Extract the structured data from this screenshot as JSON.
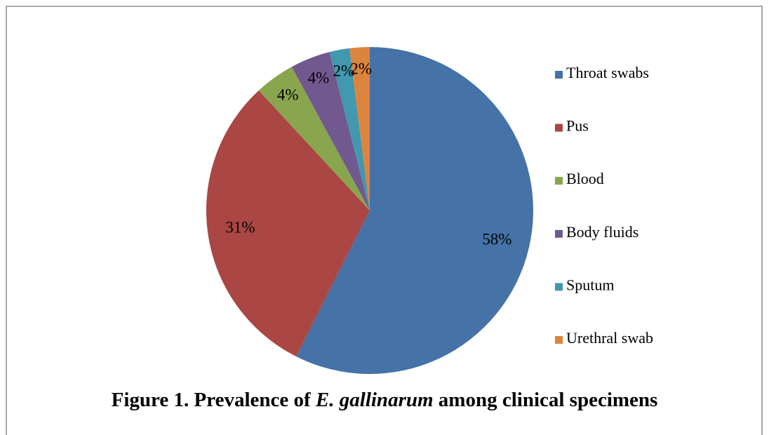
{
  "chart_data": {
    "type": "pie",
    "title": [
      "Figure 1. Prevalence of ",
      "E. gallinarum",
      " among clinical specimens"
    ],
    "categories": [
      "Throat swabs",
      "Pus",
      "Blood",
      "Body fluids",
      "Sputum",
      "Urethral swab"
    ],
    "values": [
      58,
      31,
      4,
      4,
      2,
      2
    ],
    "value_labels": [
      "58%",
      "31%",
      "4%",
      "4%",
      "2%",
      "2%"
    ],
    "colors": [
      "#4572a7",
      "#aa4643",
      "#89a54e",
      "#71588f",
      "#4198af",
      "#db843d"
    ],
    "legend": "right"
  }
}
